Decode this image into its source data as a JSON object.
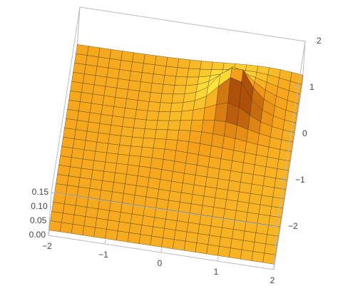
{
  "chart_data": {
    "type": "surface3d",
    "xlim": [
      -2,
      2
    ],
    "ylim": [
      -2,
      2
    ],
    "zlim": [
      0,
      0.15
    ],
    "xticks": [
      -2,
      -1,
      0,
      1,
      2
    ],
    "yticks": [
      -2,
      -1,
      0,
      1,
      2
    ],
    "zticks": [
      {
        "value": 0,
        "label": "0.00"
      },
      {
        "value": 0.05,
        "label": "0.05"
      },
      {
        "value": 0.1,
        "label": "0.10"
      },
      {
        "value": 0.15,
        "label": "0.15"
      }
    ]
  }
}
